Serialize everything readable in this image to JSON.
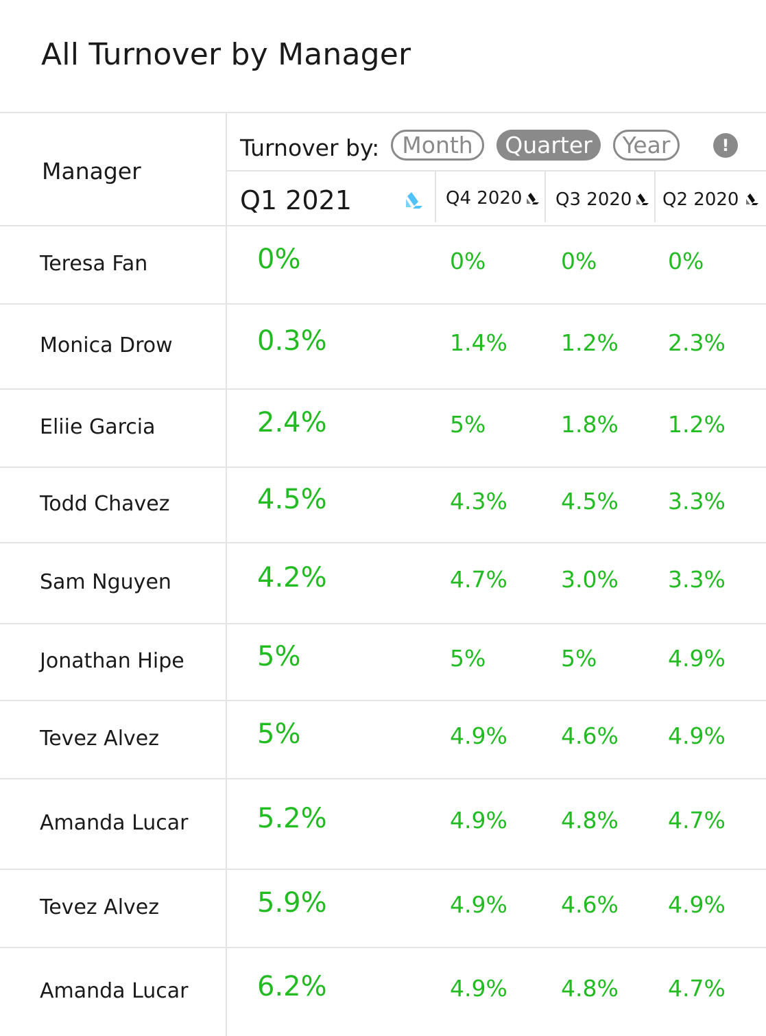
{
  "title": "All Turnover by Manager",
  "header": {
    "manager_label": "Manager",
    "turnover_label": "Turnover by:",
    "periods": [
      "Month",
      "Quarter",
      "Year"
    ],
    "selected_period": "Quarter",
    "info_symbol": "!",
    "columns": [
      "Q1 2021",
      "Q4 2020",
      "Q3 2020",
      "Q2 2020"
    ]
  },
  "colors": {
    "value_green": "#22bb22",
    "toggle_gray": "#8a8a8a",
    "sort_active": "#4fc3f7"
  },
  "rows": [
    {
      "manager": "Teresa Fan",
      "values": [
        "0%",
        "0%",
        "0%",
        "0%"
      ]
    },
    {
      "manager": "Monica Drow",
      "values": [
        "0.3%",
        "1.4%",
        "1.2%",
        "2.3%"
      ]
    },
    {
      "manager": "Eliie Garcia",
      "values": [
        "2.4%",
        "5%",
        "1.8%",
        "1.2%"
      ]
    },
    {
      "manager": "Todd Chavez",
      "values": [
        "4.5%",
        "4.3%",
        "4.5%",
        "3.3%"
      ]
    },
    {
      "manager": "Sam Nguyen",
      "values": [
        "4.2%",
        "4.7%",
        "3.0%",
        "3.3%"
      ]
    },
    {
      "manager": "Jonathan Hipe",
      "values": [
        "5%",
        "5%",
        "5%",
        "4.9%"
      ]
    },
    {
      "manager": "Tevez Alvez",
      "values": [
        "5%",
        "4.9%",
        "4.6%",
        "4.9%"
      ]
    },
    {
      "manager": "Amanda Lucar",
      "values": [
        "5.2%",
        "4.9%",
        "4.8%",
        "4.7%"
      ]
    },
    {
      "manager": "Tevez Alvez",
      "values": [
        "5.9%",
        "4.9%",
        "4.6%",
        "4.9%"
      ]
    },
    {
      "manager": "Amanda Lucar",
      "values": [
        "6.2%",
        "4.9%",
        "4.8%",
        "4.7%"
      ]
    }
  ]
}
